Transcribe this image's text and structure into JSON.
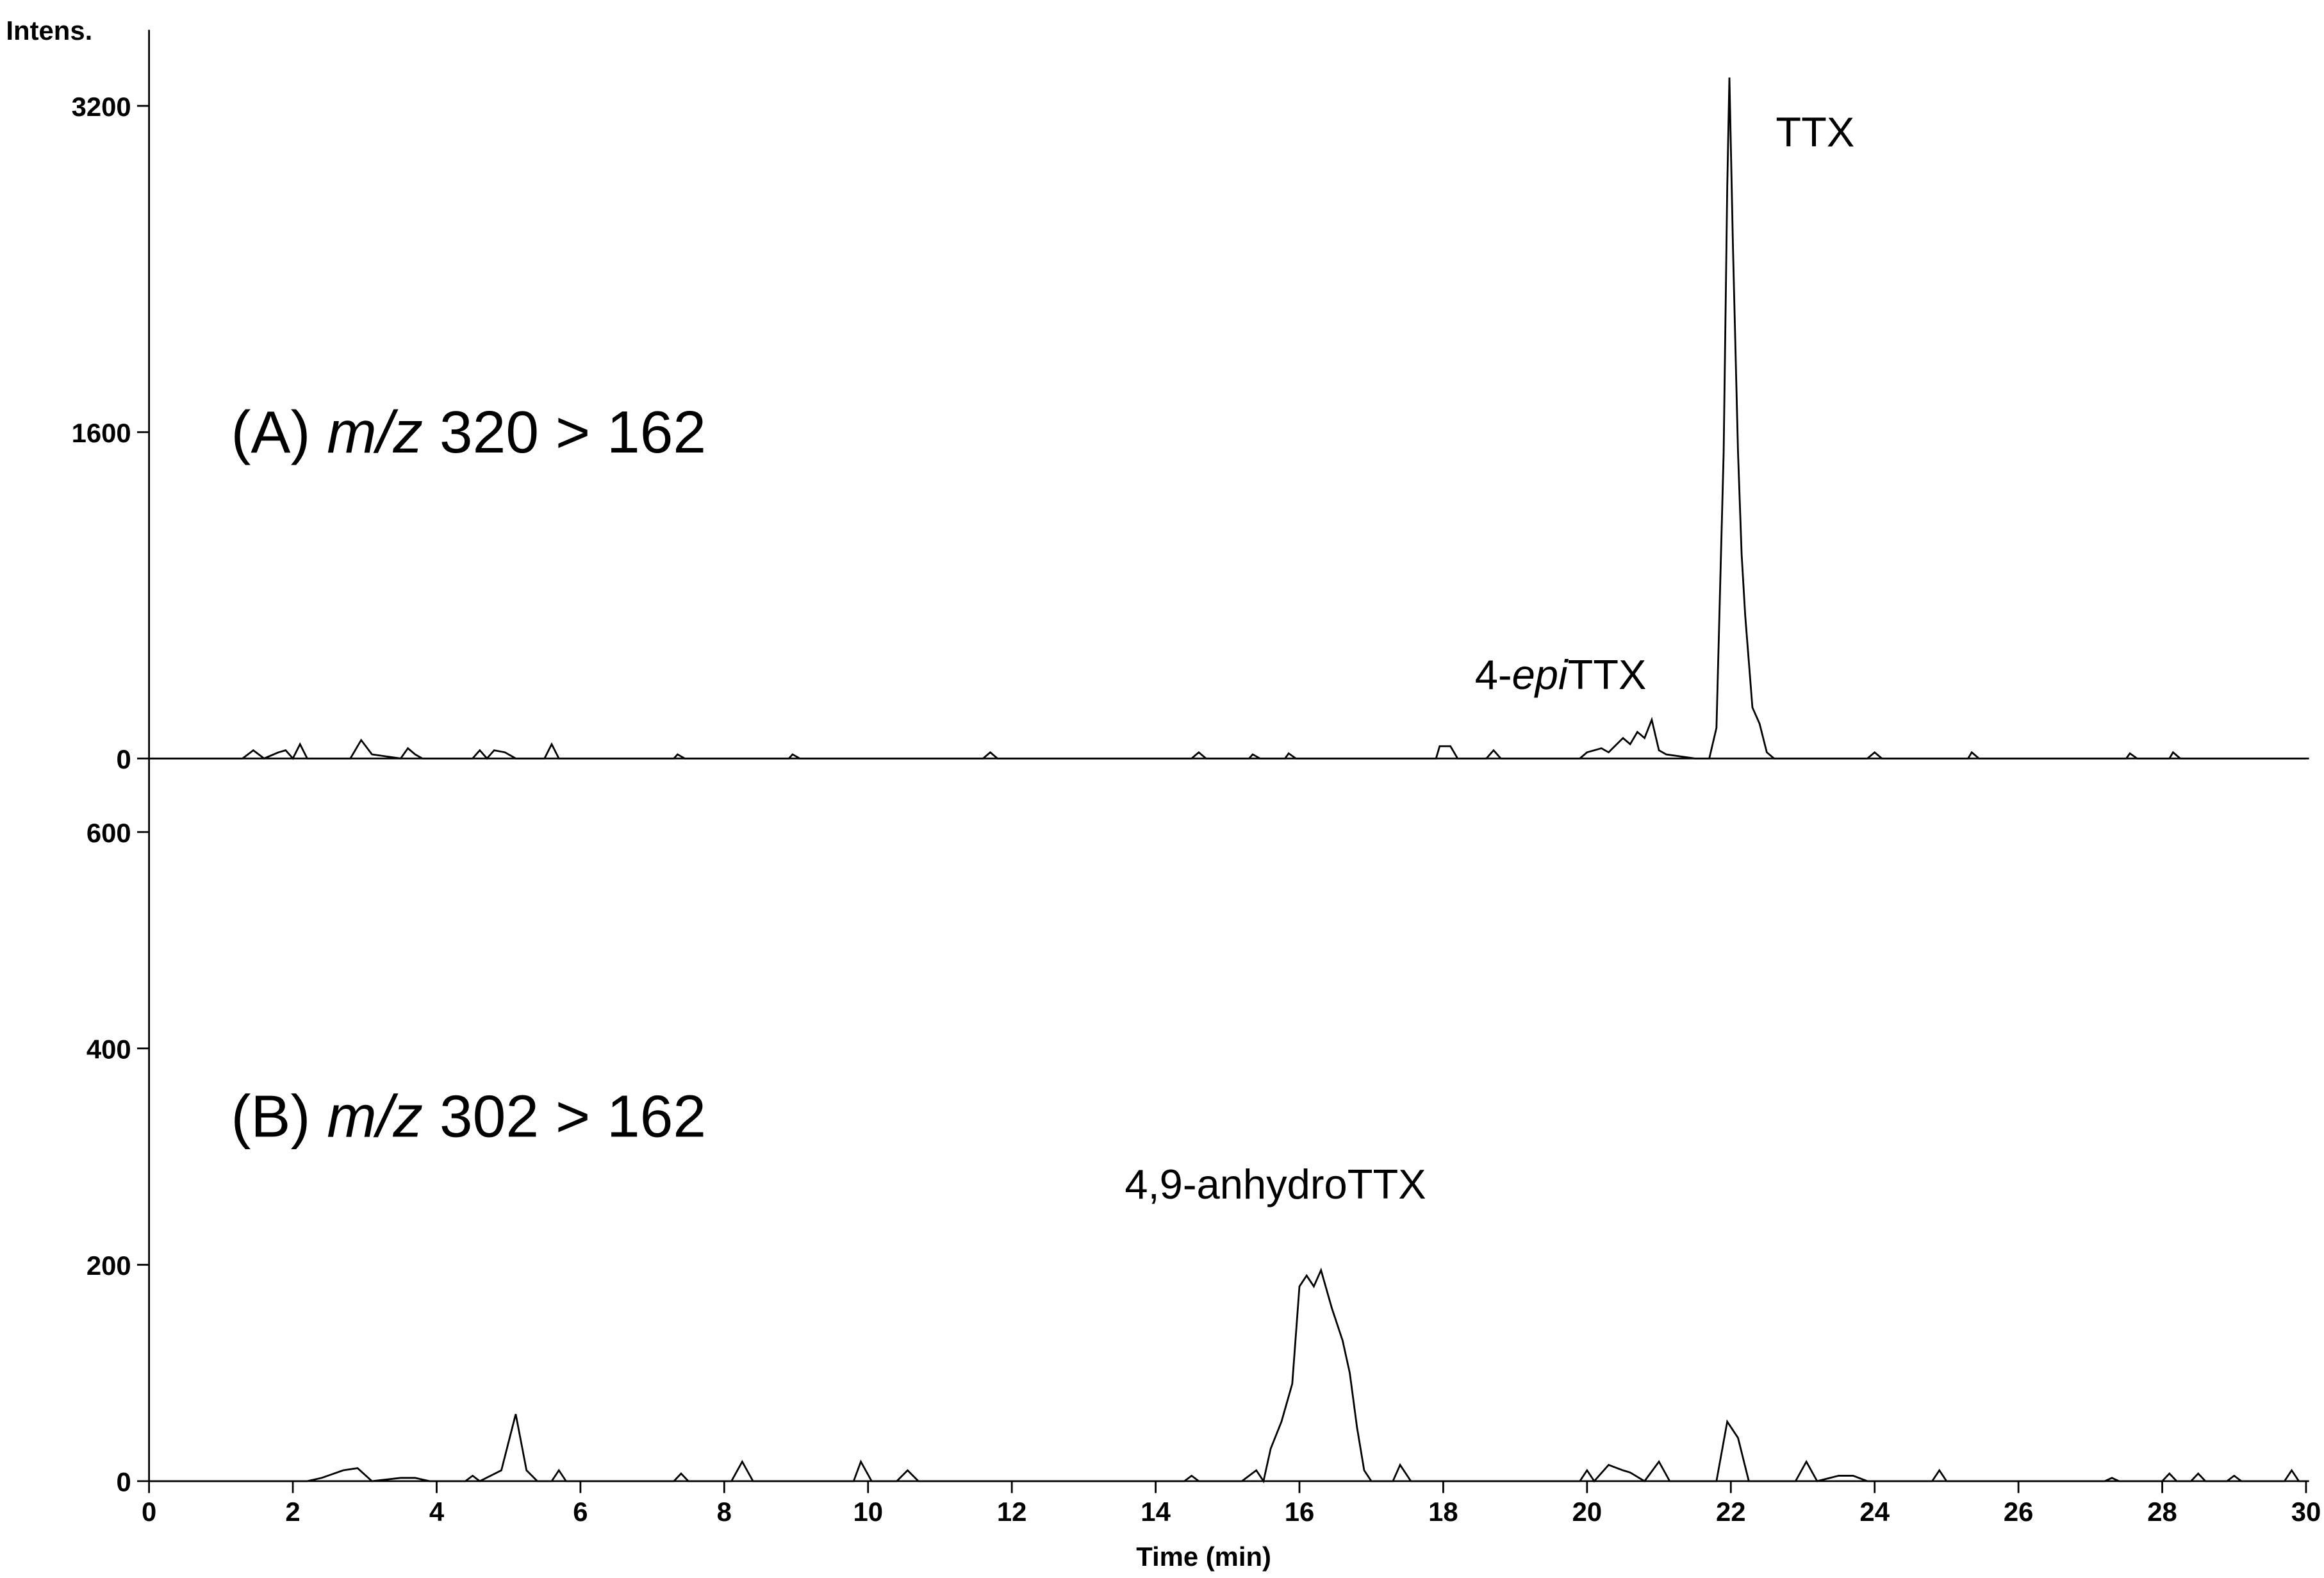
{
  "chart_data": [
    {
      "type": "line",
      "y_label": "Intens.",
      "color": "#000000",
      "xlim": [
        0,
        30
      ],
      "ylim": [
        0,
        3573
      ],
      "yticks": [
        0,
        1600,
        3200
      ],
      "x": [
        0,
        1.3,
        1.45,
        1.6,
        1.8,
        1.9,
        2.0,
        2.1,
        2.2,
        2.8,
        2.95,
        3.1,
        3.5,
        3.6,
        3.7,
        3.8,
        4.5,
        4.6,
        4.7,
        4.8,
        4.95,
        5.1,
        5.5,
        5.6,
        5.7,
        7.3,
        7.35,
        7.45,
        8.9,
        8.95,
        9.05,
        11.6,
        11.7,
        11.8,
        14.5,
        14.6,
        14.7,
        15.3,
        15.35,
        15.45,
        15.8,
        15.85,
        15.95,
        17.9,
        17.95,
        18.1,
        18.2,
        18.6,
        18.7,
        18.8,
        19.9,
        20.0,
        20.2,
        20.3,
        20.5,
        20.6,
        20.7,
        20.8,
        20.9,
        21.0,
        21.1,
        21.5,
        21.7,
        21.8,
        21.9,
        21.95,
        21.98,
        22.03,
        22.1,
        22.15,
        22.2,
        22.3,
        22.4,
        22.5,
        22.6,
        23.9,
        24.0,
        24.1,
        25.3,
        25.35,
        25.45,
        27.5,
        27.55,
        27.65,
        28.1,
        28.15,
        28.25,
        30
      ],
      "values": [
        0,
        0,
        40,
        0,
        30,
        40,
        0,
        70,
        0,
        0,
        90,
        20,
        0,
        50,
        20,
        0,
        0,
        40,
        0,
        40,
        30,
        0,
        0,
        70,
        0,
        0,
        20,
        0,
        0,
        20,
        0,
        0,
        30,
        0,
        0,
        30,
        0,
        0,
        20,
        0,
        0,
        25,
        0,
        0,
        60,
        60,
        0,
        0,
        40,
        0,
        0,
        30,
        50,
        30,
        100,
        70,
        130,
        100,
        190,
        40,
        20,
        0,
        0,
        150,
        1500,
        2800,
        3339,
        2500,
        1500,
        1000,
        700,
        250,
        170,
        30,
        0,
        0,
        30,
        0,
        0,
        30,
        0,
        0,
        25,
        0,
        0,
        30,
        0,
        0
      ],
      "annotations": [
        [
          {
            "text": "(A) "
          },
          {
            "text": "m/z",
            "italic": true
          },
          {
            "text": " 320 > 162"
          }
        ],
        [
          {
            "text": "TTX"
          }
        ],
        [
          {
            "text": "4-"
          },
          {
            "text": "epi",
            "italic": true
          },
          {
            "text": "TTX"
          }
        ]
      ]
    },
    {
      "type": "line",
      "x_label": "Time (min)",
      "color": "#000000",
      "xlim": [
        0,
        30
      ],
      "ylim": [
        0,
        668
      ],
      "yticks": [
        0,
        200,
        400,
        600
      ],
      "xticks": [
        0,
        2,
        4,
        6,
        8,
        10,
        12,
        14,
        16,
        18,
        20,
        22,
        24,
        26,
        28,
        30
      ],
      "x": [
        0,
        2.2,
        2.4,
        2.7,
        2.9,
        3.1,
        3.5,
        3.7,
        3.9,
        4.4,
        4.5,
        4.6,
        4.9,
        5.1,
        5.25,
        5.4,
        5.6,
        5.7,
        5.8,
        7.3,
        7.4,
        7.5,
        8.1,
        8.25,
        8.4,
        9.8,
        9.9,
        10.05,
        10.4,
        10.55,
        10.7,
        14.4,
        14.5,
        14.6,
        15.2,
        15.4,
        15.5,
        15.6,
        15.75,
        15.9,
        16.0,
        16.1,
        16.2,
        16.3,
        16.45,
        16.6,
        16.7,
        16.8,
        16.9,
        17.0,
        17.3,
        17.4,
        17.55,
        19.9,
        20.0,
        20.1,
        20.3,
        20.5,
        20.6,
        20.8,
        21.0,
        21.15,
        21.8,
        21.95,
        22.1,
        22.25,
        22.9,
        23.05,
        23.2,
        23.5,
        23.7,
        23.9,
        24.8,
        24.9,
        25.0,
        27.2,
        27.3,
        27.4,
        28.0,
        28.1,
        28.2,
        28.4,
        28.5,
        28.6,
        28.9,
        29.0,
        29.1,
        29.7,
        29.8,
        29.9,
        30
      ],
      "values": [
        0,
        0,
        3,
        10,
        12,
        0,
        3,
        3,
        0,
        0,
        5,
        0,
        10,
        62,
        10,
        0,
        0,
        10,
        0,
        0,
        7,
        0,
        0,
        18,
        0,
        0,
        18,
        0,
        0,
        10,
        0,
        0,
        5,
        0,
        0,
        10,
        0,
        30,
        55,
        90,
        180,
        190,
        180,
        195,
        160,
        130,
        100,
        50,
        10,
        0,
        0,
        15,
        0,
        0,
        10,
        0,
        15,
        10,
        8,
        0,
        18,
        0,
        0,
        55,
        40,
        0,
        0,
        18,
        0,
        5,
        5,
        0,
        0,
        10,
        0,
        0,
        3,
        0,
        0,
        7,
        0,
        0,
        7,
        0,
        0,
        5,
        0,
        0,
        10,
        0,
        0
      ],
      "annotations": [
        [
          {
            "text": "(B) "
          },
          {
            "text": "m/z",
            "italic": true
          },
          {
            "text": " 302 > 162"
          }
        ],
        [
          {
            "text": "4,9-anhydroTTX"
          }
        ]
      ]
    }
  ]
}
